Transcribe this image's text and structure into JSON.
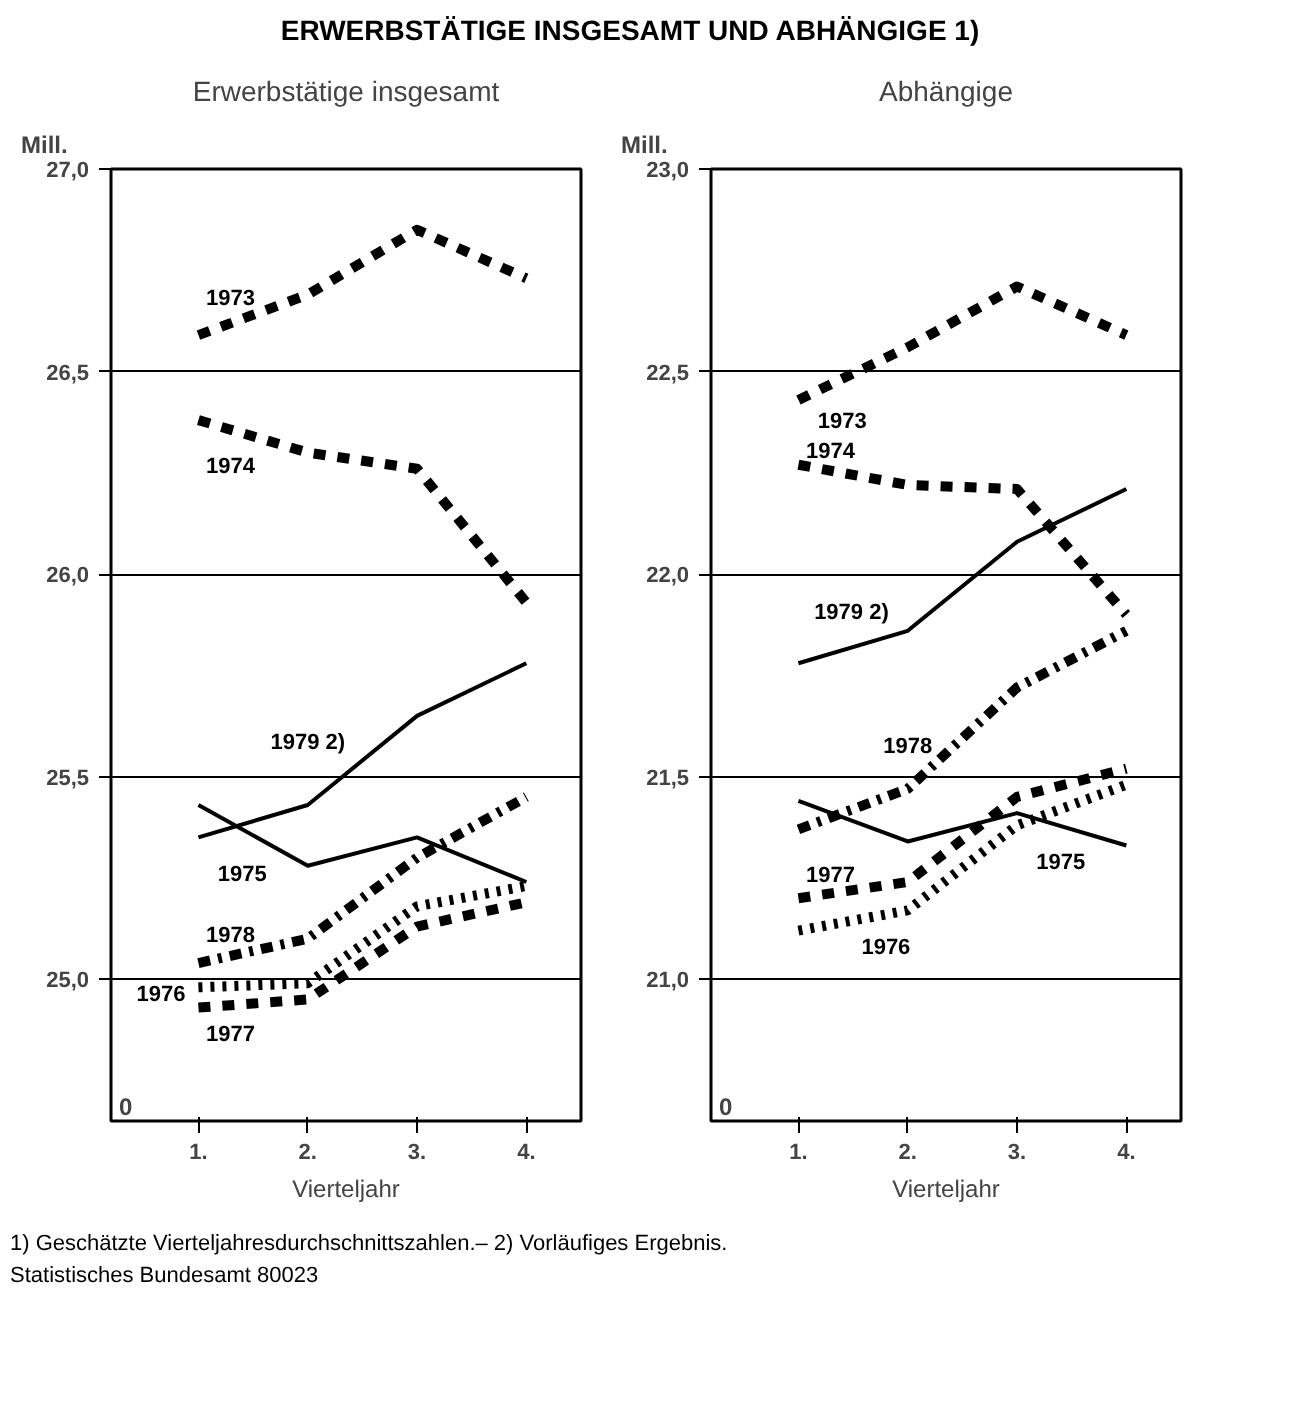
{
  "chart_data": [
    {
      "type": "line",
      "title": "ERWERBSTÄTIGE INSGESAMT UND ABHÄNGIGE 1)",
      "subtitle": "Erwerbstätige insgesamt",
      "ylabel": "Mill.",
      "xlabel": "Vierteljahr",
      "categories": [
        "1.",
        "2.",
        "3.",
        "4."
      ],
      "ylim": [
        24.65,
        27.0
      ],
      "yticks": [
        {
          "value": 25.0,
          "label": "25,0"
        },
        {
          "value": 25.5,
          "label": "25,5"
        },
        {
          "value": 26.0,
          "label": "26,0"
        },
        {
          "value": 26.5,
          "label": "26,5"
        },
        {
          "value": 27.0,
          "label": "27,0"
        }
      ],
      "grid": "y",
      "marker": "none",
      "annotations": [
        "0",
        "1) Geschätzte Vierteljahresdurchschnittszahlen.– 2) Vorläufiges Ergebnis.",
        "Statistisches Bundesamt 80023"
      ],
      "series": [
        {
          "name": "1973",
          "color": "#000000",
          "line_style": "dashed",
          "values": [
            26.59,
            26.69,
            26.85,
            26.73
          ]
        },
        {
          "name": "1974",
          "color": "#000000",
          "line_style": "dashed",
          "values": [
            26.38,
            26.3,
            26.26,
            25.93
          ]
        },
        {
          "name": "1975",
          "color": "#000000",
          "line_style": "solid",
          "values": [
            25.43,
            25.28,
            25.35,
            25.24
          ]
        },
        {
          "name": "1976",
          "color": "#000000",
          "line_style": "dotted",
          "values": [
            24.98,
            24.99,
            25.18,
            25.23
          ]
        },
        {
          "name": "1977",
          "color": "#000000",
          "line_style": "dashed",
          "values": [
            24.93,
            24.95,
            25.13,
            25.19
          ]
        },
        {
          "name": "1978",
          "color": "#000000",
          "line_style": "dashdot",
          "values": [
            25.04,
            25.1,
            25.3,
            25.45
          ]
        },
        {
          "name": "1979 2)",
          "color": "#000000",
          "line_style": "solid",
          "values": [
            25.35,
            25.43,
            25.65,
            25.78
          ]
        }
      ]
    },
    {
      "type": "line",
      "subtitle": "Abhängige",
      "ylabel": "Mill.",
      "xlabel": "Vierteljahr",
      "categories": [
        "1.",
        "2.",
        "3.",
        "4."
      ],
      "ylim": [
        20.65,
        23.0
      ],
      "yticks": [
        {
          "value": 21.0,
          "label": "21,0"
        },
        {
          "value": 21.5,
          "label": "21,5"
        },
        {
          "value": 22.0,
          "label": "22,0"
        },
        {
          "value": 22.5,
          "label": "22,5"
        },
        {
          "value": 23.0,
          "label": "23,0"
        }
      ],
      "grid": "y",
      "marker": "none",
      "annotations": [
        "0"
      ],
      "series": [
        {
          "name": "1973",
          "color": "#000000",
          "line_style": "dashed",
          "values": [
            22.43,
            22.56,
            22.71,
            22.59
          ]
        },
        {
          "name": "1974",
          "color": "#000000",
          "line_style": "dashed",
          "values": [
            22.27,
            22.22,
            22.21,
            21.9
          ]
        },
        {
          "name": "1975",
          "color": "#000000",
          "line_style": "solid",
          "values": [
            21.44,
            21.34,
            21.41,
            21.33
          ]
        },
        {
          "name": "1976",
          "color": "#000000",
          "line_style": "dotted",
          "values": [
            21.12,
            21.17,
            21.38,
            21.48
          ]
        },
        {
          "name": "1977",
          "color": "#000000",
          "line_style": "dashed",
          "values": [
            21.2,
            21.24,
            21.45,
            21.52
          ]
        },
        {
          "name": "1978",
          "color": "#000000",
          "line_style": "dashdot",
          "values": [
            21.37,
            21.47,
            21.72,
            21.86
          ]
        },
        {
          "name": "1979 2)",
          "color": "#000000",
          "line_style": "solid",
          "values": [
            21.78,
            21.86,
            22.08,
            22.21
          ]
        }
      ]
    }
  ]
}
